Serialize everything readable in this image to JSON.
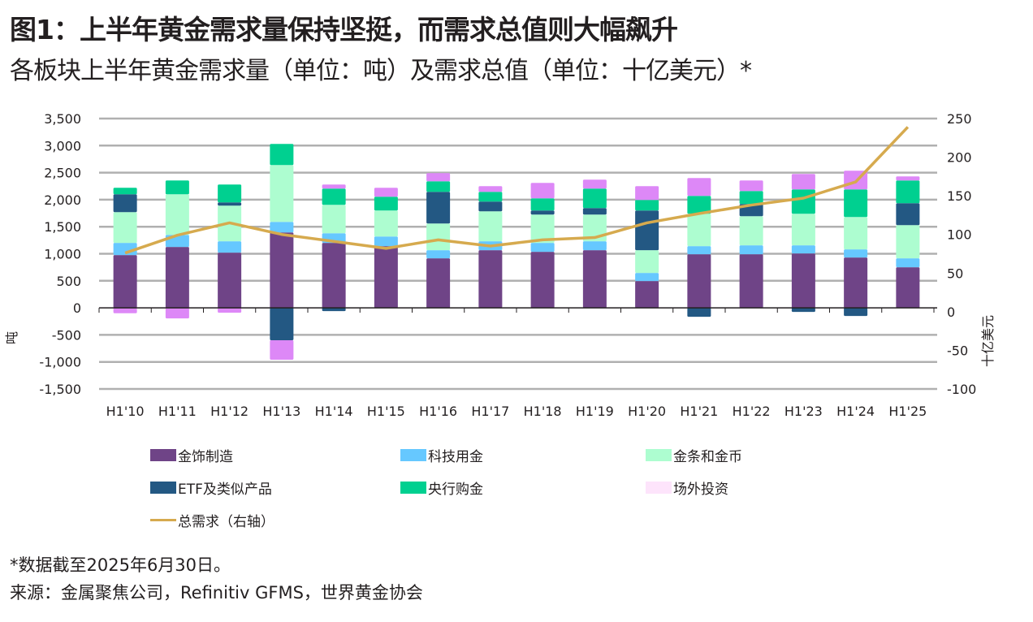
{
  "header": {
    "title": "图1：上半年黄金需求量保持坚挺，而需求总值则大幅飙升",
    "subtitle": "各板块上半年黄金需求量（单位：吨）及需求总值（单位：十亿美元）*"
  },
  "footer": {
    "note": "*数据截至2025年6月30日。",
    "source": "来源：金属聚焦公司，Refinitiv GFMS，世界黄金协会"
  },
  "chart_data": {
    "type": "bar",
    "stacked": true,
    "title": "图1：上半年黄金需求量保持坚挺，而需求总值则大幅飙升",
    "subtitle": "各板块上半年黄金需求量（单位：吨）及需求总值（单位：十亿美元）*",
    "xlabel": "",
    "ylabel": "吨",
    "y2label": "十亿美元",
    "ylim": [
      -1500,
      3500
    ],
    "y2lim": [
      -100,
      250
    ],
    "yticks": [
      3500,
      3000,
      2500,
      2000,
      1500,
      1000,
      500,
      0,
      -500,
      -1000,
      -1500
    ],
    "ytick_labels": [
      "3,500",
      "3,000",
      "2,500",
      "2,000",
      "1,500",
      "1,000",
      "500",
      "0",
      "-500",
      "-1,000",
      "-1,500"
    ],
    "y2ticks": [
      250,
      200,
      150,
      100,
      50,
      0,
      -50,
      -100
    ],
    "y2tick_labels": [
      "250",
      "200",
      "150",
      "100",
      "50",
      "0",
      "-50",
      "-100"
    ],
    "grid": true,
    "legend_position": "bottom",
    "categories": [
      "H1'10",
      "H1'11",
      "H1'12",
      "H1'13",
      "H1'14",
      "H1'15",
      "H1'16",
      "H1'17",
      "H1'18",
      "H1'19",
      "H1'20",
      "H1'21",
      "H1'22",
      "H1'23",
      "H1'24",
      "H1'25"
    ],
    "series": [
      {
        "name": "金饰制造",
        "color": "#6f4487",
        "legend_color": "#6f4487",
        "values": [
          975,
          1125,
          1020,
          1395,
          1200,
          1140,
          915,
          1065,
          1035,
          1065,
          495,
          990,
          990,
          1005,
          930,
          750
        ]
      },
      {
        "name": "科技用金",
        "color": "#66c8ff",
        "legend_color": "#66c8ff",
        "values": [
          225,
          225,
          210,
          195,
          180,
          180,
          150,
          165,
          165,
          165,
          150,
          150,
          165,
          150,
          150,
          165
        ]
      },
      {
        "name": "金条和金币",
        "color": "#adfdd0",
        "legend_color": "#adfdd0",
        "values": [
          570,
          750,
          660,
          1050,
          525,
          480,
          495,
          555,
          525,
          495,
          420,
          600,
          540,
          585,
          600,
          615
        ]
      },
      {
        "name": "ETF及类似产品",
        "color": "#235883",
        "legend_color": "#235883",
        "values": [
          330,
          0,
          60,
          -600,
          -60,
          0,
          585,
          180,
          75,
          120,
          735,
          -165,
          225,
          -75,
          -150,
          405
        ]
      },
      {
        "name": "央行购金",
        "color": "#00d090",
        "legend_color": "#00d090",
        "values": [
          120,
          255,
          330,
          390,
          300,
          255,
          195,
          180,
          225,
          360,
          195,
          330,
          240,
          450,
          510,
          420
        ]
      },
      {
        "name": "场外投资",
        "color": "#dd88f7",
        "legend_color": "#fde4fb",
        "values": [
          -100,
          -195,
          -90,
          -360,
          75,
          165,
          150,
          105,
          285,
          165,
          255,
          330,
          195,
          285,
          345,
          75
        ]
      }
    ],
    "line_series": {
      "name": "总需求（右轴）",
      "color": "#d6aa4e",
      "axis": "right",
      "values": [
        76,
        99,
        115,
        100,
        91,
        82,
        93,
        85,
        93,
        96,
        115,
        127,
        138,
        147,
        168,
        239
      ]
    },
    "legend": [
      {
        "label": "金饰制造",
        "kind": "box",
        "series": 0
      },
      {
        "label": "科技用金",
        "kind": "box",
        "series": 1
      },
      {
        "label": "金条和金币",
        "kind": "box",
        "series": 2
      },
      {
        "label": "ETF及类似产品",
        "kind": "box",
        "series": 3
      },
      {
        "label": "央行购金",
        "kind": "box",
        "series": 4
      },
      {
        "label": "场外投资",
        "kind": "box",
        "series": 5
      },
      {
        "label": "总需求（右轴）",
        "kind": "line"
      }
    ]
  }
}
